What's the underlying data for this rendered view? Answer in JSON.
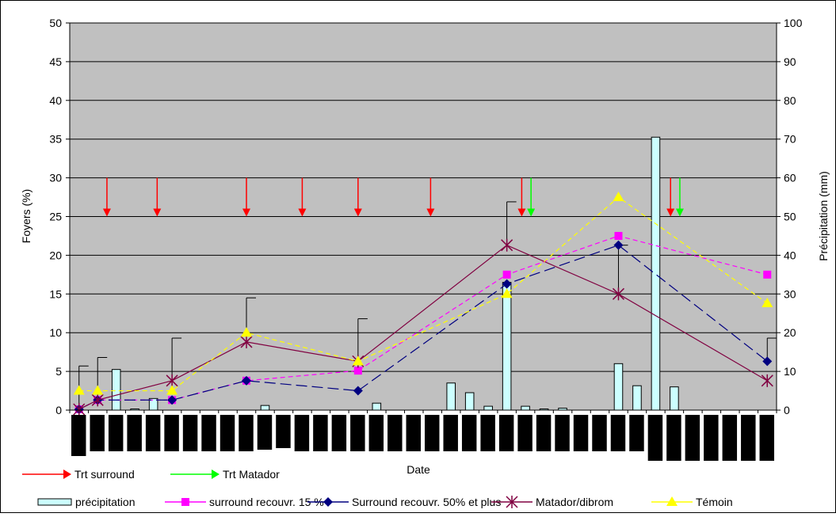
{
  "chart_data": {
    "type": "line",
    "title": "",
    "xlabel": "Date",
    "ylabel": "Foyers (%)",
    "y2label": "Précipitation (mm)",
    "ylim": [
      0,
      50
    ],
    "y2lim": [
      0,
      100
    ],
    "yticks": [
      0,
      5,
      10,
      15,
      20,
      25,
      30,
      35,
      40,
      45,
      50
    ],
    "y2ticks": [
      0,
      10,
      20,
      30,
      40,
      50,
      60,
      70,
      80,
      90,
      100
    ],
    "grid": true,
    "legend_position": "bottom",
    "x_slots": 38,
    "series": [
      {
        "name": "surround recouvr. 15 %",
        "type": "line",
        "color": "#ff00ff",
        "marker": "square",
        "dash": "dashed",
        "points": [
          [
            0,
            0.1
          ],
          [
            1,
            1.3
          ],
          [
            5,
            1.3
          ],
          [
            9,
            3.8
          ],
          [
            15,
            5.1
          ],
          [
            23,
            17.5
          ],
          [
            29,
            22.5
          ],
          [
            37,
            17.5
          ]
        ]
      },
      {
        "name": "Surround recouvr. 50% et plus",
        "type": "line",
        "color": "#000080",
        "marker": "diamond",
        "dash": "longdash",
        "points": [
          [
            0,
            0.1
          ],
          [
            1,
            1.3
          ],
          [
            5,
            1.3
          ],
          [
            9,
            3.8
          ],
          [
            15,
            2.5
          ],
          [
            23,
            16.3
          ],
          [
            29,
            21.3
          ],
          [
            37,
            6.3
          ]
        ]
      },
      {
        "name": "Matador/dibrom",
        "type": "line",
        "color": "#800040",
        "marker": "asterisk",
        "dash": "solid",
        "points": [
          [
            0,
            0.1
          ],
          [
            1,
            1.3
          ],
          [
            5,
            3.8
          ],
          [
            9,
            8.8
          ],
          [
            15,
            6.3
          ],
          [
            23,
            21.3
          ],
          [
            29,
            15.0
          ],
          [
            37,
            3.8
          ]
        ]
      },
      {
        "name": "Témoin",
        "type": "line",
        "color": "#ffff00",
        "marker": "triangle",
        "dash": "dashed",
        "points": [
          [
            0,
            2.5
          ],
          [
            1,
            2.5
          ],
          [
            5,
            2.5
          ],
          [
            9,
            10.0
          ],
          [
            15,
            6.3
          ],
          [
            23,
            15.0
          ],
          [
            29,
            27.5
          ],
          [
            37,
            13.8
          ]
        ]
      }
    ],
    "precipitation": {
      "name": "précipitation",
      "axis": "right",
      "color": "#ccffff",
      "bars": [
        [
          2,
          10.5
        ],
        [
          3,
          0.3
        ],
        [
          4,
          3.0
        ],
        [
          10,
          1.2
        ],
        [
          16,
          1.8
        ],
        [
          20,
          7.0
        ],
        [
          21,
          4.5
        ],
        [
          22,
          1.0
        ],
        [
          23,
          33.0
        ],
        [
          24,
          1.0
        ],
        [
          25,
          0.3
        ],
        [
          26,
          0.5
        ],
        [
          29,
          12.0
        ],
        [
          30,
          6.3
        ],
        [
          31,
          70.5
        ],
        [
          32,
          6.0
        ]
      ]
    },
    "error_bars": [
      {
        "x": 0,
        "low": 0.1,
        "high": 5.7
      },
      {
        "x": 1,
        "low": 1.3,
        "high": 6.8
      },
      {
        "x": 5,
        "low": 3.8,
        "high": 9.3
      },
      {
        "x": 9,
        "low": 10.0,
        "high": 14.5
      },
      {
        "x": 15,
        "low": 6.3,
        "high": 11.8
      },
      {
        "x": 23,
        "low": 21.3,
        "high": 26.9
      },
      {
        "x": 29,
        "low": 15.0,
        "high": 21.3
      },
      {
        "x": 37,
        "low": 6.3,
        "high": 9.3
      }
    ],
    "treatments": [
      {
        "name": "Trt surround",
        "color": "#ff0000",
        "x": [
          1.5,
          4.2,
          9.0,
          12.0,
          15.0,
          18.9,
          23.8,
          31.8
        ],
        "y_from": 30,
        "y_to": 25
      },
      {
        "name": "Trt Matador",
        "color": "#00ff00",
        "x": [
          24.3,
          32.3
        ],
        "y_from": 30,
        "y_to": 25
      }
    ],
    "date_label_blocks": 38
  },
  "legend": {
    "treatments": [
      "Trt surround",
      "Trt Matador"
    ],
    "series": [
      "précipitation",
      "surround recouvr. 15 %",
      "Surround recouvr. 50% et plus",
      "Matador/dibrom",
      "Témoin"
    ]
  }
}
